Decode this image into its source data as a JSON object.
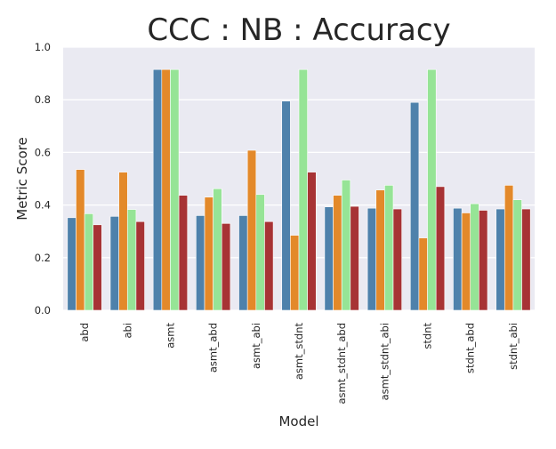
{
  "chart_data": {
    "type": "bar",
    "title": "CCC : NB : Accuracy",
    "xlabel": "Model",
    "ylabel": "Metric Score",
    "ylim": [
      0,
      1.0
    ],
    "yticks": [
      "0.0",
      "0.2",
      "0.4",
      "0.6",
      "0.8",
      "1.0"
    ],
    "grid": true,
    "legend": "none",
    "categories": [
      "abd",
      "abi",
      "asmt",
      "asmt_abd",
      "asmt_abi",
      "asmt_stdnt",
      "asmt_stdnt_abd",
      "asmt_stdnt_abi",
      "stdnt",
      "stdnt_abd",
      "stdnt_abi"
    ],
    "series": [
      {
        "color": "#4e81ab",
        "values": [
          0.352,
          0.357,
          0.915,
          0.36,
          0.36,
          0.795,
          0.393,
          0.388,
          0.79,
          0.388,
          0.385
        ]
      },
      {
        "color": "#e3892a",
        "values": [
          0.535,
          0.525,
          0.915,
          0.43,
          0.608,
          0.285,
          0.437,
          0.457,
          0.275,
          0.37,
          0.475
        ]
      },
      {
        "color": "#96e496",
        "values": [
          0.367,
          0.383,
          0.915,
          0.462,
          0.44,
          0.915,
          0.495,
          0.475,
          0.915,
          0.405,
          0.42
        ]
      },
      {
        "color": "#a73335",
        "values": [
          0.325,
          0.337,
          0.437,
          0.33,
          0.337,
          0.525,
          0.395,
          0.385,
          0.47,
          0.38,
          0.385
        ]
      }
    ],
    "colors": {
      "plot_background": "#eaeaf2",
      "grid": "#ffffff",
      "text": "#262626"
    }
  }
}
